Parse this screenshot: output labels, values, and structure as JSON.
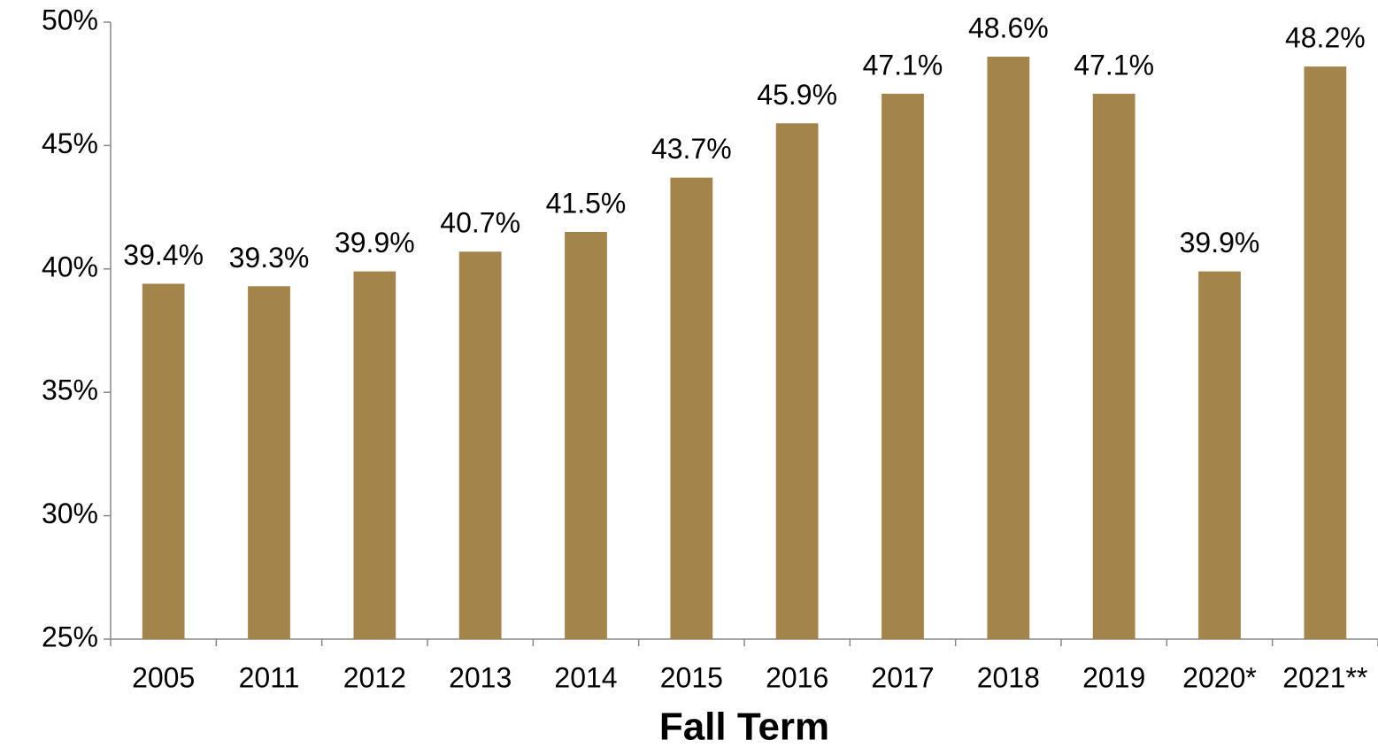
{
  "chart_data": {
    "type": "bar",
    "x_label": "Fall Term",
    "categories": [
      "2005",
      "2011",
      "2012",
      "2013",
      "2014",
      "2015",
      "2016",
      "2017",
      "2018",
      "2019",
      "2020*",
      "2021**"
    ],
    "values": [
      39.4,
      39.3,
      39.9,
      40.7,
      41.5,
      43.7,
      45.9,
      47.1,
      48.6,
      47.1,
      39.9,
      48.2
    ],
    "value_labels": [
      "39.4%",
      "39.3%",
      "39.9%",
      "40.7%",
      "41.5%",
      "43.7%",
      "45.9%",
      "47.1%",
      "48.6%",
      "47.1%",
      "39.9%",
      "48.2%"
    ],
    "color": "#a3844a",
    "ylim": [
      25,
      50
    ],
    "yticks": [
      {
        "value": 25,
        "label": "25%"
      },
      {
        "value": 30,
        "label": "30%"
      },
      {
        "value": 35,
        "label": "35%"
      },
      {
        "value": 40,
        "label": "40%"
      },
      {
        "value": 45,
        "label": "45%"
      },
      {
        "value": 50,
        "label": "50%"
      }
    ],
    "grid": false
  }
}
